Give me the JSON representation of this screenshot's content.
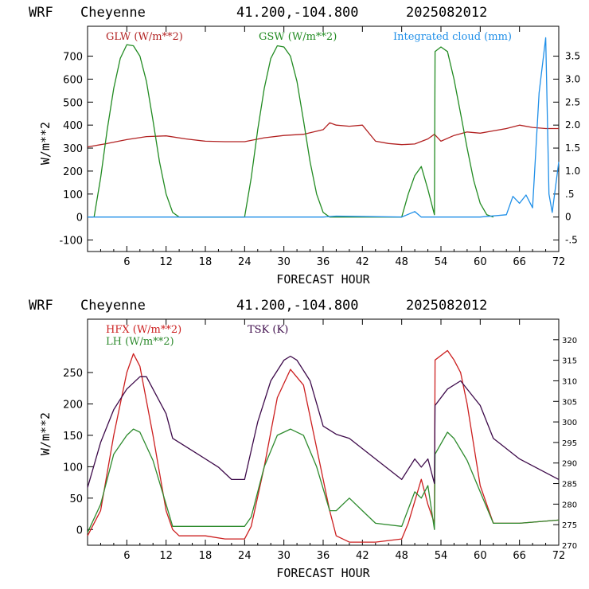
{
  "chart_data": [
    {
      "type": "line",
      "header": {
        "model": "WRF",
        "location": "Cheyenne",
        "coords": "41.200,-104.800",
        "init": "2025082012"
      },
      "xlabel": "FORECAST HOUR",
      "ylabel": "W/m**2",
      "xlim": [
        0,
        72
      ],
      "x_ticks": [
        6,
        12,
        18,
        24,
        30,
        36,
        42,
        48,
        54,
        60,
        66,
        72
      ],
      "ylim": [
        -150,
        830
      ],
      "y_ticks": [
        -100,
        0,
        100,
        200,
        300,
        400,
        500,
        600,
        700
      ],
      "y2lim": [
        -0.75,
        4.15
      ],
      "y2_ticks": [
        -0.5,
        0,
        0.5,
        1.0,
        1.5,
        2.0,
        2.5,
        3.0,
        3.5
      ],
      "y2_tick_labels": [
        "-.5",
        "0",
        ".5",
        "1.0",
        "1.5",
        "2.0",
        "2.5",
        "3.0",
        "3.5"
      ],
      "legend": [
        "GLW (W/m**2)",
        "GSW (W/m**2)",
        "Integrated cloud (mm)"
      ],
      "series": [
        {
          "name": "GLW (W/m**2)",
          "color": "#b22222",
          "axis": "left",
          "x": [
            0,
            3,
            6,
            9,
            12,
            15,
            18,
            21,
            24,
            27,
            30,
            33,
            36,
            37,
            38,
            40,
            42,
            44,
            46,
            48,
            50,
            52,
            53,
            54,
            56,
            58,
            60,
            62,
            64,
            66,
            68,
            70,
            72
          ],
          "y": [
            305,
            320,
            337,
            350,
            353,
            340,
            330,
            328,
            328,
            345,
            355,
            360,
            380,
            410,
            400,
            395,
            400,
            330,
            320,
            315,
            318,
            340,
            360,
            330,
            355,
            370,
            365,
            375,
            385,
            400,
            390,
            385,
            385
          ]
        },
        {
          "name": "GSW (W/m**2)",
          "color": "#228b22",
          "axis": "left",
          "x": [
            1,
            2,
            3,
            4,
            5,
            6,
            7,
            8,
            9,
            10,
            11,
            12,
            13,
            14,
            24,
            25,
            26,
            27,
            28,
            29,
            30,
            31,
            32,
            33,
            34,
            35,
            36,
            37,
            48,
            49,
            50,
            51,
            52,
            53,
            53.1,
            54,
            55,
            56,
            57,
            58,
            59,
            60,
            61,
            62
          ],
          "y": [
            0,
            170,
            380,
            560,
            690,
            750,
            745,
            700,
            590,
            420,
            240,
            100,
            20,
            0,
            0,
            170,
            380,
            560,
            690,
            745,
            740,
            700,
            590,
            420,
            240,
            100,
            20,
            0,
            0,
            100,
            180,
            220,
            120,
            10,
            720,
            740,
            720,
            600,
            450,
            300,
            160,
            60,
            10,
            0
          ]
        },
        {
          "name": "Integrated cloud (mm)",
          "color": "#1f8fe8",
          "axis": "right",
          "x": [
            0,
            36,
            38,
            48,
            50,
            51,
            52,
            60,
            64,
            65,
            66,
            67,
            68,
            69,
            70,
            70.5,
            71,
            72
          ],
          "y": [
            0,
            0,
            0.02,
            0,
            0.12,
            0,
            0,
            0,
            0.05,
            0.45,
            0.3,
            0.48,
            0.2,
            2.7,
            3.9,
            0.5,
            0.1,
            1.2
          ]
        }
      ]
    },
    {
      "type": "line",
      "header": {
        "model": "WRF",
        "location": "Cheyenne",
        "coords": "41.200,-104.800",
        "init": "2025082012"
      },
      "xlabel": "FORECAST HOUR",
      "ylabel": "W/m**2",
      "xlim": [
        0,
        72
      ],
      "x_ticks": [
        6,
        12,
        18,
        24,
        30,
        36,
        42,
        48,
        54,
        60,
        66,
        72
      ],
      "ylim": [
        -25,
        335
      ],
      "y_ticks": [
        0,
        50,
        100,
        150,
        200,
        250
      ],
      "y2lim": [
        270,
        325
      ],
      "y2_ticks": [
        270,
        275,
        280,
        285,
        290,
        295,
        300,
        305,
        310,
        315,
        320
      ],
      "legend": [
        "HFX (W/m**2)",
        "LH (W/m**2)",
        "TSK (K)"
      ],
      "series": [
        {
          "name": "HFX (W/m**2)",
          "color": "#cc1f1f",
          "axis": "left",
          "x": [
            0,
            2,
            4,
            6,
            7,
            8,
            10,
            12,
            13,
            14,
            18,
            21,
            24,
            25,
            27,
            29,
            31,
            33,
            35,
            37,
            38,
            40,
            44,
            48,
            49,
            51,
            52,
            53,
            53.1,
            55,
            56,
            57,
            58,
            60,
            62,
            66,
            72
          ],
          "y": [
            -10,
            30,
            150,
            250,
            280,
            260,
            150,
            30,
            0,
            -10,
            -10,
            -15,
            -15,
            5,
            100,
            210,
            255,
            230,
            130,
            30,
            -10,
            -20,
            -20,
            -15,
            10,
            80,
            40,
            10,
            270,
            285,
            270,
            250,
            200,
            70,
            10,
            10,
            15
          ]
        },
        {
          "name": "LH (W/m**2)",
          "color": "#2e8b2e",
          "axis": "left",
          "x": [
            0,
            2,
            4,
            6,
            7,
            8,
            10,
            12,
            13,
            14,
            20,
            24,
            25,
            27,
            29,
            31,
            33,
            35,
            37,
            38,
            40,
            42,
            44,
            48,
            50,
            51,
            52,
            53,
            53.1,
            55,
            56,
            58,
            60,
            62,
            66,
            72
          ],
          "y": [
            -5,
            40,
            120,
            150,
            160,
            155,
            110,
            40,
            5,
            5,
            5,
            5,
            20,
            100,
            150,
            160,
            150,
            100,
            30,
            30,
            50,
            30,
            10,
            5,
            60,
            50,
            70,
            0,
            120,
            155,
            145,
            110,
            60,
            10,
            10,
            15
          ]
        },
        {
          "name": "TSK (K)",
          "color": "#3d0a4a",
          "axis": "right",
          "x": [
            0,
            2,
            4,
            6,
            8,
            9,
            10,
            12,
            13,
            16,
            20,
            22,
            24,
            26,
            28,
            30,
            31,
            32,
            34,
            36,
            38,
            40,
            44,
            48,
            50,
            51,
            52,
            53,
            53.1,
            55,
            57,
            59,
            60,
            62,
            66,
            72
          ],
          "y": [
            284,
            295,
            303,
            308,
            311,
            311,
            308,
            302,
            296,
            293,
            289,
            286,
            286,
            300,
            310,
            315,
            316,
            315,
            310,
            299,
            297,
            296,
            291,
            286,
            291,
            289,
            291,
            285,
            304,
            308,
            310,
            306,
            304,
            296,
            291,
            286
          ]
        }
      ]
    }
  ]
}
